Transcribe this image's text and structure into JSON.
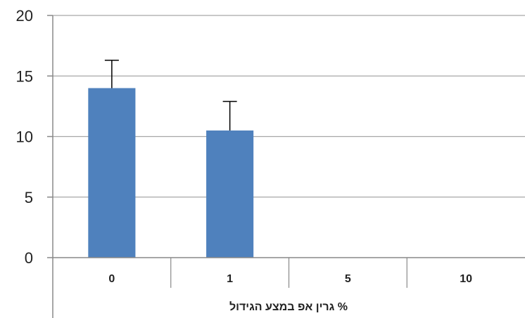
{
  "chart_data": {
    "type": "bar",
    "categories": [
      "0",
      "1",
      "5",
      "10"
    ],
    "values": [
      14,
      10.5,
      0,
      0
    ],
    "error_bars": [
      2.3,
      2.4,
      0,
      0
    ],
    "title": "",
    "xlabel": "% גרין אפ במצע הגידול",
    "ylabel": "",
    "ylim": [
      0,
      20
    ],
    "yticks": [
      "0",
      "5",
      "10",
      "15",
      "20"
    ],
    "grid": true,
    "bar_color": "#4f81bd"
  }
}
